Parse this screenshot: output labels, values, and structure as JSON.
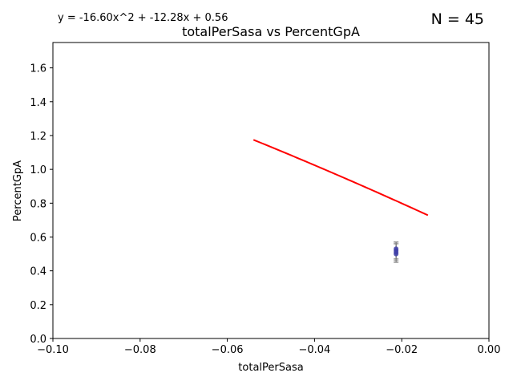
{
  "chart_data": {
    "type": "scatter",
    "title": "totalPerSasa vs PercentGpA",
    "xlabel": "totalPerSasa",
    "ylabel": "PercentGpA",
    "xlim": [
      -0.1,
      0.0
    ],
    "ylim": [
      0.0,
      1.75
    ],
    "xticks": [
      -0.1,
      -0.08,
      -0.06,
      -0.04,
      -0.02,
      0.0
    ],
    "xtick_labels": [
      "−0.10",
      "−0.08",
      "−0.06",
      "−0.04",
      "−0.02",
      "0.00"
    ],
    "yticks": [
      0.0,
      0.2,
      0.4,
      0.6,
      0.8,
      1.0,
      1.2,
      1.4,
      1.6
    ],
    "ytick_labels": [
      "0.0",
      "0.2",
      "0.4",
      "0.6",
      "0.8",
      "1.0",
      "1.2",
      "1.4",
      "1.6"
    ],
    "equation": "y = -16.60x^2 + -12.28x + 0.56",
    "n_label": "N = 45",
    "fit": {
      "a": -16.6,
      "b": -12.28,
      "c": 0.56,
      "x_range": [
        -0.054,
        -0.014
      ],
      "color": "#ff0000"
    },
    "points": {
      "color": "#3f3fa8",
      "x": [
        -0.0213,
        -0.0213,
        -0.0213,
        -0.0213
      ],
      "y": [
        0.53,
        0.52,
        0.51,
        0.5
      ],
      "yerr_low": [
        0.45,
        0.46,
        0.47,
        0.47
      ],
      "yerr_high": [
        0.57,
        0.57,
        0.56,
        0.56
      ]
    },
    "grid": false
  }
}
